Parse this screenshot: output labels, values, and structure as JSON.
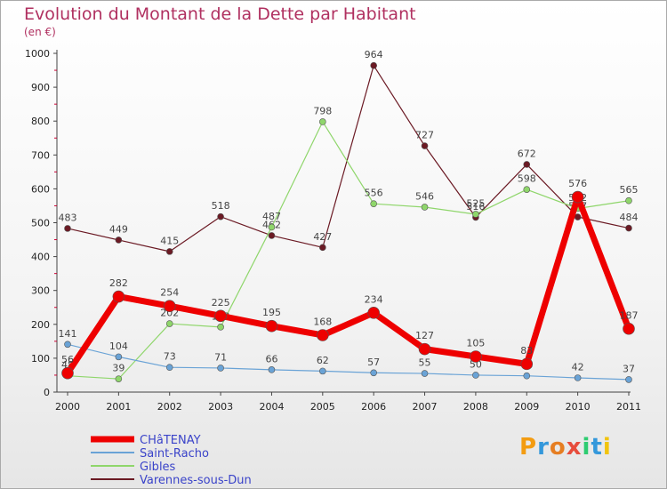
{
  "title": "Evolution du Montant de la Dette par Habitant",
  "unit": "(en €)",
  "logo": {
    "letters": [
      "P",
      "r",
      "o",
      "x",
      "i",
      "t",
      "i"
    ],
    "colors": [
      "#f39c12",
      "#3498db",
      "#e67e22",
      "#e74c3c",
      "#2ecc71",
      "#3498db",
      "#f1c40f"
    ]
  },
  "chart_data": {
    "type": "line",
    "x": [
      "2000",
      "2001",
      "2002",
      "2003",
      "2004",
      "2005",
      "2006",
      "2007",
      "2008",
      "2009",
      "2010",
      "2011"
    ],
    "ylim": [
      0,
      1000
    ],
    "yticks": [
      0,
      100,
      200,
      300,
      400,
      500,
      600,
      700,
      800,
      900,
      1000
    ],
    "grid": false,
    "legend_position": "bottom-left",
    "series": [
      {
        "name": "Varennes-sous-Dun",
        "color": "#6b1a24",
        "width": 1.2,
        "dot": 3.5,
        "values": [
          483,
          449,
          415,
          518,
          462,
          427,
          964,
          727,
          516,
          672,
          517,
          484
        ],
        "labels": [
          "483",
          "449",
          "415",
          "518",
          "462",
          "427",
          "964",
          "727",
          "516",
          "672",
          "517",
          "484"
        ]
      },
      {
        "name": "Gibles",
        "color": "#8fd66b",
        "width": 1.2,
        "dot": 3.5,
        "values": [
          48,
          39,
          202,
          192,
          487,
          798,
          556,
          546,
          525,
          598,
          542,
          565
        ],
        "labels": [
          "48",
          "39",
          "202",
          "192",
          "487",
          "798",
          "556",
          "546",
          "525",
          "598",
          "542",
          "565"
        ]
      },
      {
        "name": "Saint-Racho",
        "color": "#6aa3d6",
        "width": 1.2,
        "dot": 3.5,
        "values": [
          141,
          104,
          73,
          71,
          66,
          62,
          57,
          55,
          50,
          48,
          42,
          37
        ],
        "labels": [
          "141",
          "104",
          "73",
          "71",
          "66",
          "62",
          "57",
          "55",
          "50",
          "48",
          "42",
          "37"
        ]
      },
      {
        "name": "CHâTENAY",
        "color": "#ee0000",
        "width": 7,
        "dot": 6.5,
        "values": [
          56,
          282,
          254,
          225,
          195,
          168,
          234,
          127,
          105,
          83,
          576,
          187
        ],
        "labels": [
          "56",
          "282",
          "254",
          "225",
          "195",
          "168",
          "234",
          "127",
          "105",
          "83",
          "576",
          "187"
        ]
      }
    ]
  }
}
